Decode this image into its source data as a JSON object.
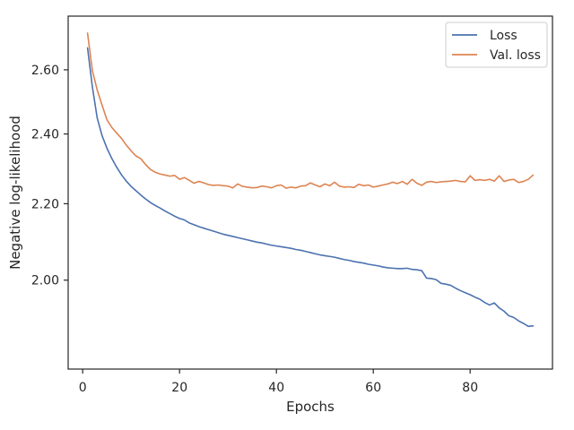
{
  "chart_data": {
    "type": "line",
    "xlabel": "Epochs",
    "ylabel": "Negative log-likelihood",
    "xlim": [
      -3,
      97
    ],
    "ylim": [
      1.79,
      2.78
    ],
    "xscale": "linear",
    "yscale": "log",
    "xticks": [
      0,
      20,
      40,
      60,
      80
    ],
    "xtick_labels": [
      "0",
      "20",
      "40",
      "60",
      "80"
    ],
    "yticks": [
      2.0,
      2.2,
      2.4,
      2.6
    ],
    "ytick_labels": [
      "2.00",
      "2.20",
      "2.40",
      "2.60"
    ],
    "grid": false,
    "legend": {
      "placement": "top-right",
      "entries": [
        "Loss",
        "Val. loss"
      ]
    },
    "colors": {
      "Loss": "#4c72b0",
      "Val. loss": "#dd8452"
    },
    "series": [
      {
        "name": "Loss",
        "x": [
          1,
          2,
          3,
          4,
          5,
          6,
          7,
          8,
          9,
          10,
          11,
          12,
          13,
          14,
          15,
          16,
          17,
          18,
          19,
          20,
          21,
          22,
          23,
          24,
          25,
          26,
          27,
          28,
          29,
          30,
          31,
          32,
          33,
          34,
          35,
          36,
          37,
          38,
          39,
          40,
          41,
          42,
          43,
          44,
          45,
          46,
          47,
          48,
          49,
          50,
          51,
          52,
          53,
          54,
          55,
          56,
          57,
          58,
          59,
          60,
          61,
          62,
          63,
          64,
          65,
          66,
          67,
          68,
          69,
          70,
          71,
          72,
          73,
          74,
          75,
          76,
          77,
          78,
          79,
          80,
          81,
          82,
          83,
          84,
          85,
          86,
          87,
          88,
          89,
          90,
          91,
          92,
          93
        ],
        "values": [
          2.672,
          2.545,
          2.448,
          2.395,
          2.358,
          2.328,
          2.303,
          2.281,
          2.263,
          2.248,
          2.236,
          2.224,
          2.213,
          2.203,
          2.195,
          2.188,
          2.18,
          2.173,
          2.166,
          2.16,
          2.156,
          2.148,
          2.143,
          2.138,
          2.134,
          2.13,
          2.126,
          2.122,
          2.118,
          2.115,
          2.112,
          2.109,
          2.106,
          2.103,
          2.1,
          2.097,
          2.095,
          2.092,
          2.089,
          2.087,
          2.085,
          2.083,
          2.081,
          2.078,
          2.076,
          2.073,
          2.07,
          2.067,
          2.064,
          2.062,
          2.06,
          2.058,
          2.055,
          2.052,
          2.05,
          2.047,
          2.045,
          2.043,
          2.04,
          2.038,
          2.036,
          2.033,
          2.031,
          2.03,
          2.029,
          2.029,
          2.03,
          2.027,
          2.026,
          2.024,
          2.005,
          2.004,
          2.001,
          1.992,
          1.99,
          1.987,
          1.98,
          1.974,
          1.969,
          1.964,
          1.958,
          1.953,
          1.945,
          1.939,
          1.944,
          1.932,
          1.924,
          1.913,
          1.909,
          1.901,
          1.895,
          1.888,
          1.889
        ]
      },
      {
        "name": "Val. loss",
        "x": [
          1,
          2,
          3,
          4,
          5,
          6,
          7,
          8,
          9,
          10,
          11,
          12,
          13,
          14,
          15,
          16,
          17,
          18,
          19,
          20,
          21,
          22,
          23,
          24,
          25,
          26,
          27,
          28,
          29,
          30,
          31,
          32,
          33,
          34,
          35,
          36,
          37,
          38,
          39,
          40,
          41,
          42,
          43,
          44,
          45,
          46,
          47,
          48,
          49,
          50,
          51,
          52,
          53,
          54,
          55,
          56,
          57,
          58,
          59,
          60,
          61,
          62,
          63,
          64,
          65,
          66,
          67,
          68,
          69,
          70,
          71,
          72,
          73,
          74,
          75,
          76,
          77,
          78,
          79,
          80,
          81,
          82,
          83,
          84,
          85,
          86,
          87,
          88,
          89,
          90,
          91,
          92,
          93
        ],
        "values": [
          2.722,
          2.597,
          2.535,
          2.488,
          2.443,
          2.42,
          2.403,
          2.387,
          2.367,
          2.35,
          2.335,
          2.327,
          2.31,
          2.296,
          2.288,
          2.283,
          2.28,
          2.277,
          2.279,
          2.268,
          2.273,
          2.265,
          2.257,
          2.262,
          2.258,
          2.253,
          2.251,
          2.252,
          2.25,
          2.249,
          2.244,
          2.255,
          2.248,
          2.246,
          2.244,
          2.245,
          2.249,
          2.247,
          2.244,
          2.25,
          2.252,
          2.243,
          2.246,
          2.244,
          2.249,
          2.25,
          2.258,
          2.252,
          2.247,
          2.255,
          2.25,
          2.26,
          2.249,
          2.246,
          2.247,
          2.245,
          2.254,
          2.25,
          2.252,
          2.246,
          2.249,
          2.252,
          2.255,
          2.26,
          2.256,
          2.262,
          2.254,
          2.268,
          2.257,
          2.251,
          2.26,
          2.262,
          2.259,
          2.261,
          2.262,
          2.263,
          2.265,
          2.262,
          2.261,
          2.278,
          2.265,
          2.267,
          2.265,
          2.268,
          2.263,
          2.278,
          2.262,
          2.266,
          2.268,
          2.259,
          2.262,
          2.268,
          2.28
        ]
      }
    ]
  }
}
